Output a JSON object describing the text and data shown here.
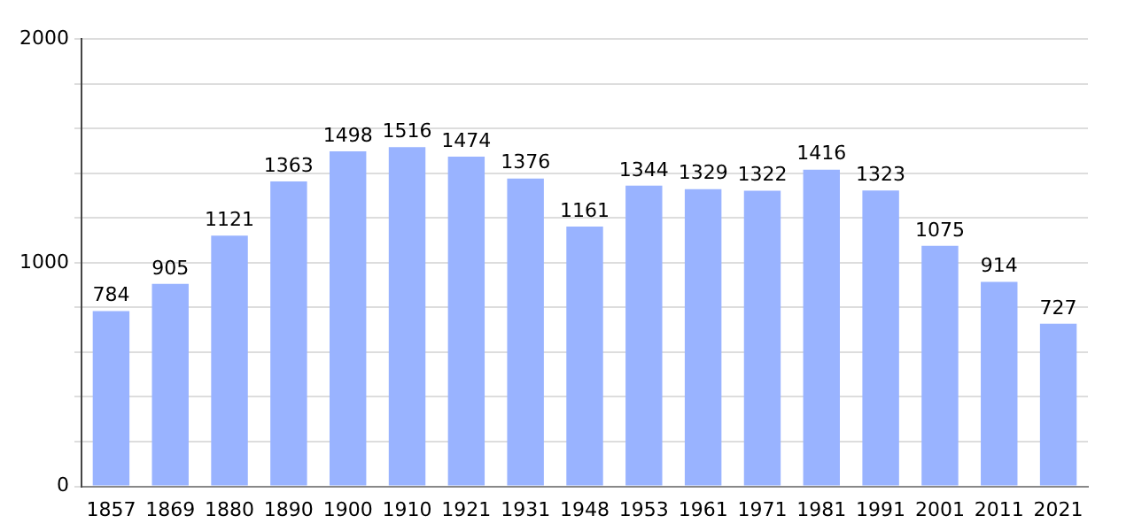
{
  "chart_data": {
    "type": "bar",
    "categories": [
      "1857",
      "1869",
      "1880",
      "1890",
      "1900",
      "1910",
      "1921",
      "1931",
      "1948",
      "1953",
      "1961",
      "1971",
      "1981",
      "1991",
      "2001",
      "2011",
      "2021"
    ],
    "values": [
      784,
      905,
      1121,
      1363,
      1498,
      1516,
      1474,
      1376,
      1161,
      1344,
      1329,
      1322,
      1416,
      1323,
      1075,
      914,
      727
    ],
    "color": "#99b3ff",
    "ylim": [
      0,
      2000
    ],
    "yticks": [
      0,
      {
        "value": 200,
        "label": null
      },
      {
        "value": 400,
        "label": null
      },
      {
        "value": 600,
        "label": null
      },
      {
        "value": 800,
        "label": null
      },
      1000,
      {
        "value": 1200,
        "label": null
      },
      {
        "value": 1400,
        "label": null
      },
      {
        "value": 1600,
        "label": null
      },
      {
        "value": 1800,
        "label": null
      },
      2000
    ],
    "grid": "y",
    "data_labels": true,
    "legend": false
  }
}
